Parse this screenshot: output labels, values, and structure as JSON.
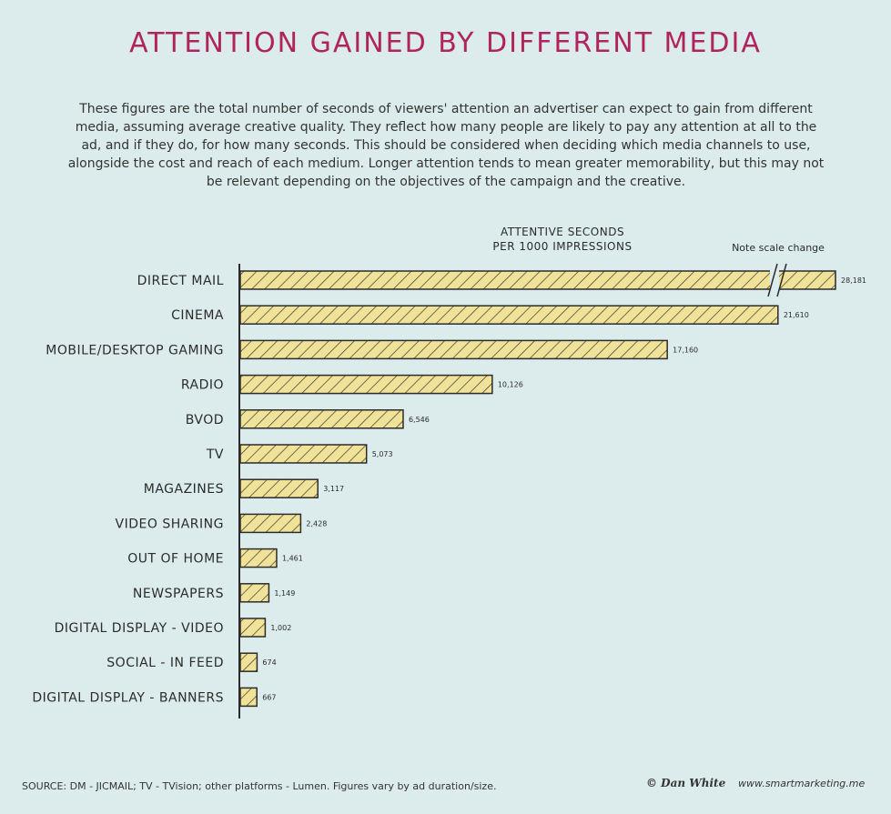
{
  "header": {
    "title": "ATTENTION GAINED BY DIFFERENT MEDIA",
    "subtitle": "These figures are the total number of seconds of viewers' attention an advertiser can expect to gain from different media, assuming average creative quality. They reflect how many people are likely to pay any attention at all to the ad, and if they do, for how many seconds. This should be considered when deciding which media channels to use, alongside the cost and reach of each medium. Longer attention tends to mean greater memorability, but this may not be relevant depending on the objectives of the campaign and the creative."
  },
  "chart_data": {
    "type": "bar",
    "orientation": "horizontal",
    "ylabel": "ATTENTIVE SECONDS PER 1000 IMPRESSIONS",
    "axis_title_lines": [
      "ATTENTIVE SECONDS",
      "PER 1000 IMPRESSIONS"
    ],
    "note": "Note scale change",
    "scale_break_category": "DIRECT MAIL",
    "categories": [
      "DIRECT MAIL",
      "CINEMA",
      "MOBILE/DESKTOP GAMING",
      "RADIO",
      "BVOD",
      "TV",
      "MAGAZINES",
      "VIDEO SHARING",
      "OUT OF HOME",
      "NEWSPAPERS",
      "DIGITAL DISPLAY - VIDEO",
      "SOCIAL - IN FEED",
      "DIGITAL DISPLAY - BANNERS"
    ],
    "values": [
      28181,
      21610,
      17160,
      10126,
      6546,
      5073,
      3117,
      2428,
      1461,
      1149,
      1002,
      674,
      667
    ],
    "value_labels": [
      "28,181",
      "21,610",
      "17,160",
      "10,126",
      "6,546",
      "5,073",
      "3,117",
      "2,428",
      "1,461",
      "1,149",
      "1,002",
      "674",
      "667"
    ],
    "bar_fill": "#f1e29a",
    "hatch_color": "#3a3a2a",
    "legend": "none",
    "grid": false
  },
  "footer": {
    "source": "SOURCE: DM - JICMAIL; TV - TVision; other platforms - Lumen. Figures vary by ad duration/size.",
    "credit": "© Dan White",
    "website": "www.smartmarketing.me"
  },
  "colors": {
    "background": "#dcecec",
    "title": "#b0245e"
  }
}
